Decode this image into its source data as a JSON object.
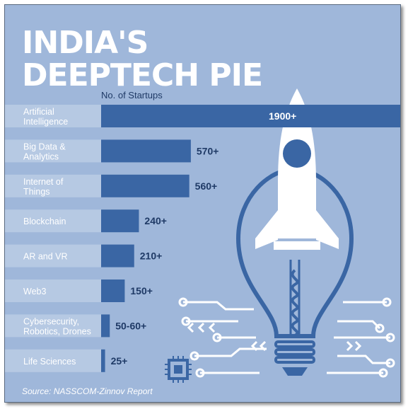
{
  "title_line1": "INDIA'S",
  "title_line2": "DEEPTECH PIE",
  "column_header": "No. of Startups",
  "source": "Source: NASSCOM-Zinnov Report",
  "colors": {
    "background": "#9fb7da",
    "label_band": "#b6c9e3",
    "bar": "#3a66a4",
    "value_text": "#1f3a66",
    "label_text": "#ffffff",
    "rocket": "#ffffff",
    "bulb": "#3a66a4"
  },
  "chart_data": {
    "type": "bar",
    "orientation": "horizontal",
    "title": "INDIA'S DEEPTECH PIE",
    "xlabel": "No. of Startups",
    "ylabel": "",
    "categories": [
      "Artificial Intelligence",
      "Big Data & Analytics",
      "Internet of Things",
      "Blockchain",
      "AR and VR",
      "Web3",
      "Cybersecurity, Robotics, Drones",
      "Life Sciences"
    ],
    "category_lines": [
      [
        "Artificial",
        "Intelligence"
      ],
      [
        "Big Data &",
        "Analytics"
      ],
      [
        "Internet of",
        "Things"
      ],
      [
        "Blockchain"
      ],
      [
        "AR and VR"
      ],
      [
        "Web3"
      ],
      [
        "Cybersecurity,",
        "Robotics, Drones"
      ],
      [
        "Life Sciences"
      ]
    ],
    "values": [
      1900,
      570,
      560,
      240,
      210,
      150,
      55,
      25
    ],
    "value_labels": [
      "1900+",
      "570+",
      "560+",
      "240+",
      "210+",
      "150+",
      "50-60+",
      "25+"
    ]
  }
}
